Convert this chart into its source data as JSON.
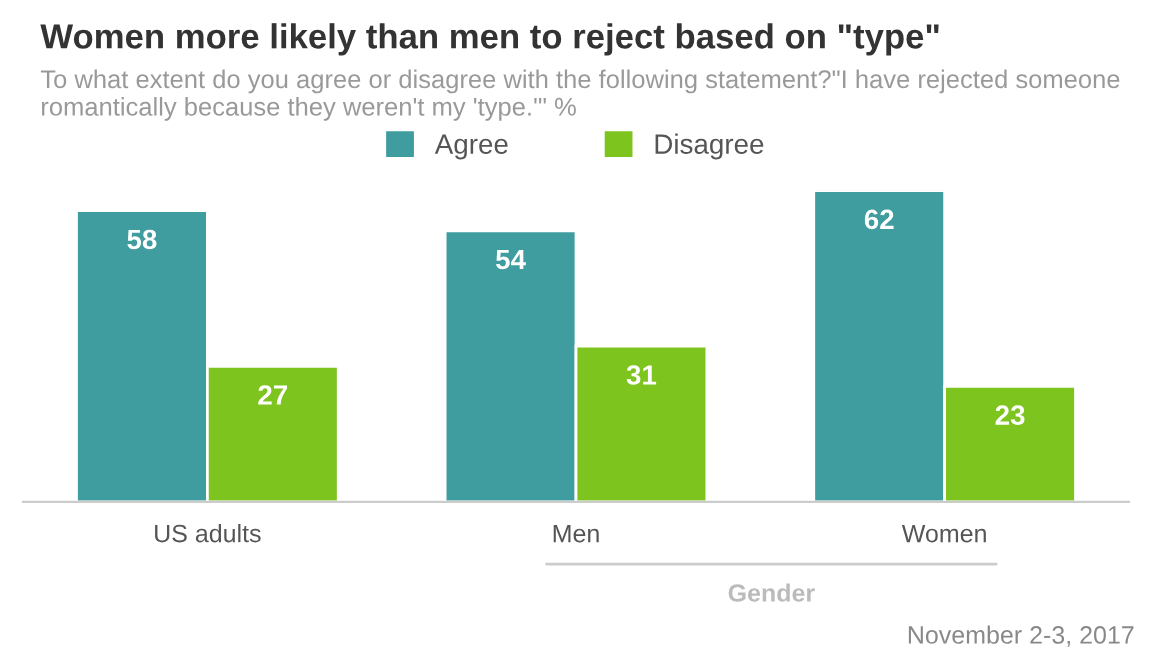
{
  "chart_data": {
    "type": "bar",
    "title": "Women more likely than men to reject based on \"type\"",
    "subtitle": "To what extent do you agree or disagree with the following statement?\"I have rejected someone romantically because they weren't my 'type.'\" %",
    "categories": [
      "US adults",
      "Men",
      "Women"
    ],
    "series": [
      {
        "name": "Agree",
        "color": "#3f9c9f",
        "values": [
          58,
          54,
          62
        ]
      },
      {
        "name": "Disagree",
        "color": "#7dc41e",
        "values": [
          27,
          31,
          23
        ]
      }
    ],
    "data_labels": true,
    "legend": "top",
    "grid": false,
    "annotations": [
      "Gender",
      "November 2-3, 2017"
    ]
  }
}
